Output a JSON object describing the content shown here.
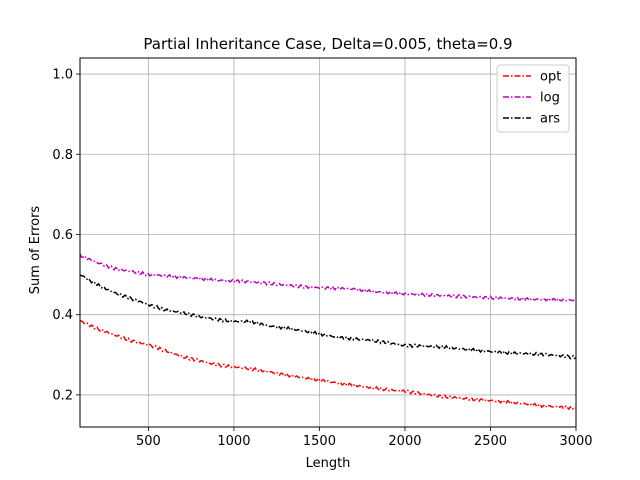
{
  "chart_data": {
    "type": "line",
    "title": "Partial Inheritance Case, Delta=0.005, theta=0.9",
    "xlabel": "Length",
    "ylabel": "Sum of Errors",
    "xlim": [
      100,
      3000
    ],
    "ylim": [
      0.12,
      1.04
    ],
    "xticks": [
      500,
      1000,
      1500,
      2000,
      2500,
      3000
    ],
    "yticks": [
      0.2,
      0.4,
      0.6,
      0.8,
      1.0
    ],
    "xtick_labels": [
      "500",
      "1000",
      "1500",
      "2000",
      "2500",
      "3000"
    ],
    "ytick_labels": [
      "0.2",
      "0.4",
      "0.6",
      "0.8",
      "1.0"
    ],
    "grid": true,
    "legend_position": "top-right",
    "x": [
      100,
      200,
      300,
      400,
      500,
      600,
      700,
      800,
      900,
      1000,
      1100,
      1200,
      1300,
      1400,
      1500,
      1600,
      1700,
      1800,
      1900,
      2000,
      2100,
      2200,
      2300,
      2400,
      2500,
      2600,
      2700,
      2800,
      2900,
      3000
    ],
    "series": [
      {
        "name": "opt",
        "color": "#ff0000",
        "values": [
          0.385,
          0.365,
          0.35,
          0.335,
          0.325,
          0.31,
          0.295,
          0.285,
          0.275,
          0.27,
          0.265,
          0.258,
          0.25,
          0.243,
          0.237,
          0.23,
          0.224,
          0.218,
          0.213,
          0.209,
          0.203,
          0.197,
          0.193,
          0.189,
          0.186,
          0.182,
          0.178,
          0.173,
          0.17,
          0.167
        ]
      },
      {
        "name": "log",
        "color": "#bf00bf",
        "values": [
          0.548,
          0.53,
          0.515,
          0.508,
          0.5,
          0.497,
          0.493,
          0.49,
          0.486,
          0.484,
          0.482,
          0.478,
          0.474,
          0.47,
          0.467,
          0.466,
          0.464,
          0.458,
          0.455,
          0.452,
          0.45,
          0.448,
          0.446,
          0.444,
          0.442,
          0.441,
          0.439,
          0.438,
          0.437,
          0.436
        ]
      },
      {
        "name": "ars",
        "color": "#000000",
        "values": [
          0.5,
          0.475,
          0.455,
          0.44,
          0.425,
          0.412,
          0.405,
          0.395,
          0.388,
          0.383,
          0.383,
          0.372,
          0.367,
          0.36,
          0.352,
          0.344,
          0.34,
          0.336,
          0.33,
          0.323,
          0.322,
          0.32,
          0.316,
          0.312,
          0.308,
          0.305,
          0.303,
          0.301,
          0.298,
          0.293
        ]
      }
    ]
  }
}
